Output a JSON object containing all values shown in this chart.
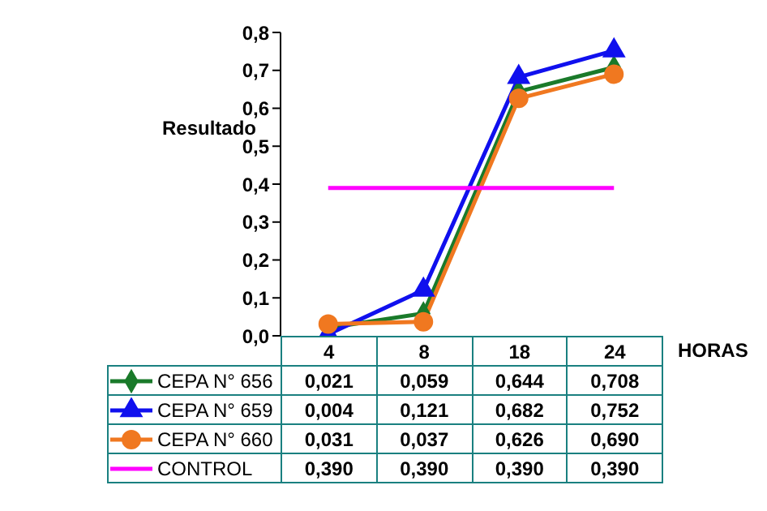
{
  "chart_data": {
    "type": "line",
    "ylabel": "Resultado",
    "xlabel": "HORAS",
    "categories": [
      "4",
      "8",
      "18",
      "24"
    ],
    "ylim": [
      0,
      0.8
    ],
    "yticks": [
      {
        "value": 0,
        "label": "0,0"
      },
      {
        "value": 0.1,
        "label": "0,1"
      },
      {
        "value": 0.2,
        "label": "0,2"
      },
      {
        "value": 0.3,
        "label": "0,3"
      },
      {
        "value": 0.4,
        "label": "0,4"
      },
      {
        "value": 0.5,
        "label": "0,5"
      },
      {
        "value": 0.6,
        "label": "0,6"
      },
      {
        "value": 0.7,
        "label": "0,7"
      },
      {
        "value": 0.8,
        "label": "0,8"
      }
    ],
    "grid": false,
    "legend": "bottom",
    "series": [
      {
        "name": "CEPA N° 656",
        "color": "#1a7a2a",
        "marker": "diamond",
        "values": [
          0.021,
          0.059,
          0.644,
          0.708
        ],
        "value_labels": [
          "0,021",
          "0,059",
          "0,644",
          "0,708"
        ]
      },
      {
        "name": "CEPA N° 659",
        "color": "#1010ee",
        "marker": "triangle",
        "values": [
          0.004,
          0.121,
          0.682,
          0.752
        ],
        "value_labels": [
          "0,004",
          "0,121",
          "0,682",
          "0,752"
        ]
      },
      {
        "name": "CEPA N° 660",
        "color": "#f07820",
        "marker": "circle",
        "values": [
          0.031,
          0.037,
          0.626,
          0.69
        ],
        "value_labels": [
          "0,031",
          "0,037",
          "0,626",
          "0,690"
        ]
      },
      {
        "name": "CONTROL",
        "color": "#ff00ff",
        "marker": "none",
        "values": [
          0.39,
          0.39,
          0.39,
          0.39
        ],
        "value_labels": [
          "0,390",
          "0,390",
          "0,390",
          "0,390"
        ]
      }
    ]
  }
}
